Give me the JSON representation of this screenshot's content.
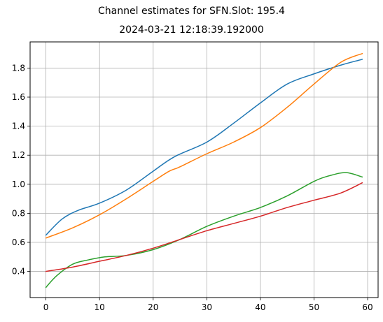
{
  "chart_data": {
    "type": "line",
    "title": "Channel estimates for SFN.Slot: 195.4",
    "subtitle": "2024-03-21 12:18:39.192000",
    "xlabel": "",
    "ylabel": "",
    "xlim": [
      -2.95,
      61.95
    ],
    "ylim": [
      0.22,
      1.98
    ],
    "xticks": [
      0,
      10,
      20,
      30,
      40,
      50,
      60
    ],
    "yticks": [
      0.4,
      0.6,
      0.8,
      1.0,
      1.2,
      1.4,
      1.6,
      1.8
    ],
    "xtick_labels": [
      "0",
      "10",
      "20",
      "30",
      "40",
      "50",
      "60"
    ],
    "ytick_labels": [
      "0.4",
      "0.6",
      "0.8",
      "1.0",
      "1.2",
      "1.4",
      "1.6",
      "1.8"
    ],
    "grid": true,
    "legend": "none",
    "series": [
      {
        "color": "#1f77b4",
        "x": [
          0,
          3,
          6,
          10,
          15,
          20,
          24,
          30,
          35,
          40,
          45,
          50,
          55,
          59
        ],
        "y": [
          0.65,
          0.76,
          0.82,
          0.87,
          0.96,
          1.09,
          1.19,
          1.29,
          1.42,
          1.56,
          1.69,
          1.76,
          1.82,
          1.86
        ]
      },
      {
        "color": "#ff7f0e",
        "x": [
          0,
          5,
          10,
          15,
          20,
          23,
          25,
          30,
          35,
          40,
          45,
          50,
          55,
          59
        ],
        "y": [
          0.63,
          0.7,
          0.79,
          0.9,
          1.02,
          1.09,
          1.12,
          1.21,
          1.29,
          1.39,
          1.53,
          1.69,
          1.84,
          1.9
        ]
      },
      {
        "color": "#2ca02c",
        "x": [
          0,
          2,
          5,
          8,
          11,
          15,
          20,
          25,
          30,
          35,
          40,
          45,
          50,
          53,
          56,
          59
        ],
        "y": [
          0.29,
          0.37,
          0.45,
          0.48,
          0.5,
          0.51,
          0.55,
          0.62,
          0.71,
          0.78,
          0.84,
          0.92,
          1.02,
          1.06,
          1.08,
          1.05
        ]
      },
      {
        "color": "#d62728",
        "x": [
          0,
          5,
          10,
          15,
          20,
          25,
          30,
          35,
          40,
          45,
          50,
          55,
          59
        ],
        "y": [
          0.4,
          0.43,
          0.47,
          0.51,
          0.56,
          0.62,
          0.68,
          0.73,
          0.78,
          0.84,
          0.89,
          0.94,
          1.01
        ]
      }
    ]
  }
}
